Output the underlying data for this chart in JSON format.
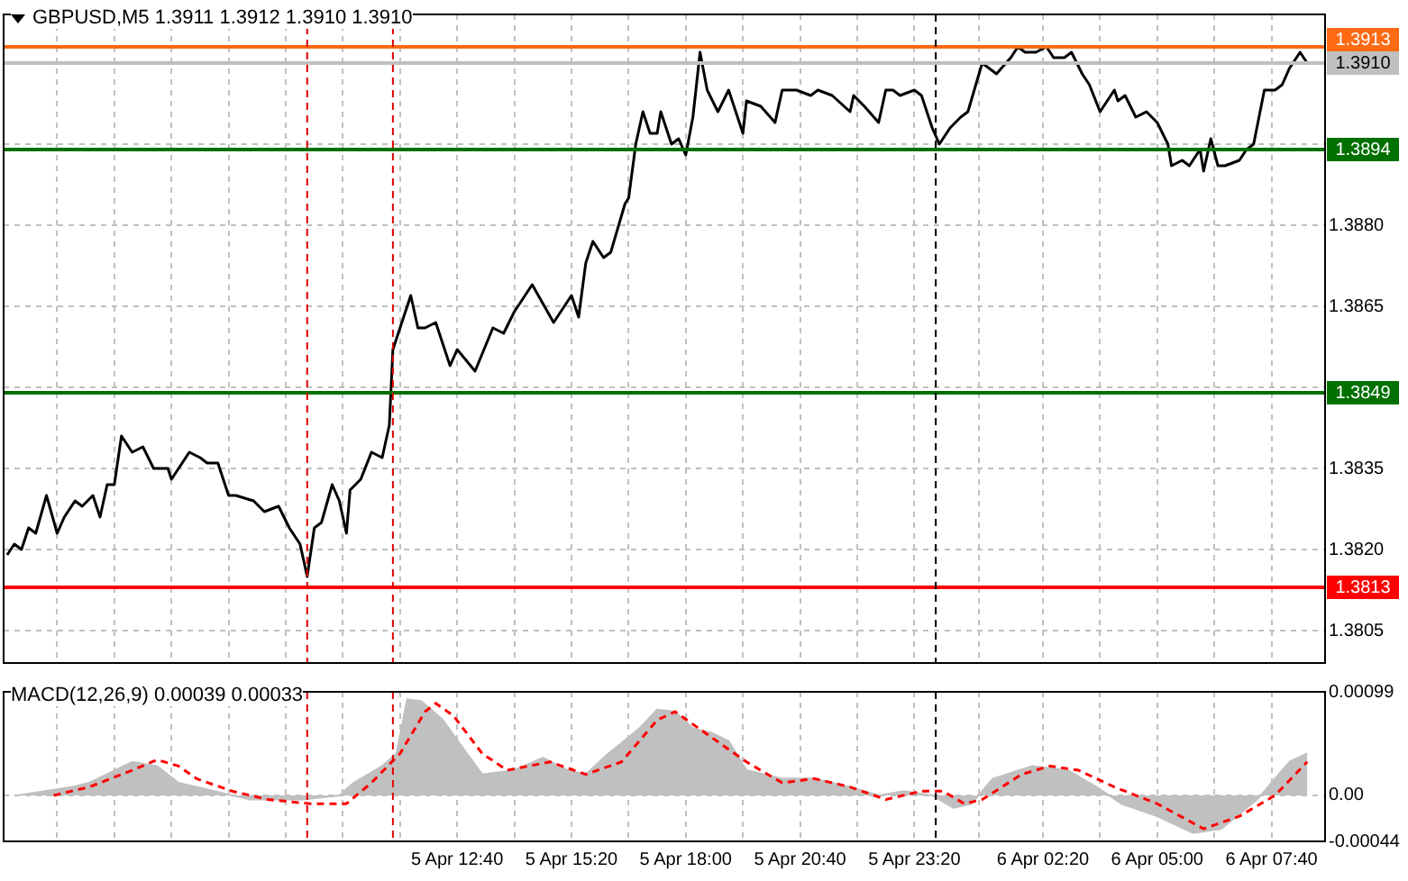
{
  "chart_data": [
    {
      "type": "line",
      "title": "GBPUSD,M5  1.3911 1.3912 1.3910 1.3910",
      "xlim": [
        "--04-05T02:05",
        "--04-06T08:55"
      ],
      "xticks": [
        {
          "value": "--04-05T03:20",
          "label": null
        },
        {
          "value": "--04-05T04:40",
          "label": null
        },
        {
          "value": "--04-05T06:00",
          "label": null
        },
        {
          "value": "--04-05T07:20",
          "label": null
        },
        {
          "value": "--04-05T08:40",
          "label": null
        },
        {
          "value": "--04-05T10:00",
          "label": null
        },
        {
          "value": "--04-05T11:20",
          "label": null
        },
        {
          "value": "--04-05T12:40",
          "label": null
        },
        {
          "value": "--04-05T14:00",
          "label": null
        },
        {
          "value": "--04-05T15:20",
          "label": null
        },
        {
          "value": "--04-05T16:40",
          "label": null
        },
        {
          "value": "--04-05T18:00",
          "label": null
        },
        {
          "value": "--04-05T19:20",
          "label": null
        },
        {
          "value": "--04-05T20:40",
          "label": null
        },
        {
          "value": "--04-05T22:00",
          "label": null
        },
        {
          "value": "--04-05T23:20",
          "label": null
        },
        {
          "value": "--04-06T00:50",
          "label": null
        },
        {
          "value": "--04-06T02:20",
          "label": null
        },
        {
          "value": "--04-06T03:40",
          "label": null
        },
        {
          "value": "--04-06T05:00",
          "label": null
        },
        {
          "value": "--04-06T06:20",
          "label": null
        },
        {
          "value": "--04-06T07:40",
          "label": null
        }
      ],
      "ylim": [
        1.3799,
        1.3919
      ],
      "yticks": [
        1.3805,
        {
          "value": 1.382,
          "label": "1.3820"
        },
        1.3835,
        {
          "value": 1.385,
          "label": null
        },
        1.3865,
        {
          "value": 1.388,
          "label": "1.3880"
        },
        {
          "value": 1.3895,
          "label": null
        }
      ],
      "tick_labels": "y",
      "grid": true,
      "marker": "none",
      "series": [
        {
          "color": "#000000",
          "x": [
            "--04-05T02:10",
            "--04-05T02:20",
            "--04-05T02:30",
            "--04-05T02:40",
            "--04-05T02:50",
            "--04-05T03:05",
            "--04-05T03:20",
            "--04-05T03:30",
            "--04-05T03:45",
            "--04-05T03:55",
            "--04-05T04:10",
            "--04-05T04:20",
            "--04-05T04:30",
            "--04-05T04:40",
            "--04-05T04:50",
            "--04-05T05:05",
            "--04-05T05:20",
            "--04-05T05:35",
            "--04-05T05:55",
            "--04-05T06:00",
            "--04-05T06:10",
            "--04-05T06:25",
            "--04-05T06:40",
            "--04-05T06:50",
            "--04-05T07:05",
            "--04-05T07:20",
            "--04-05T07:30",
            "--04-05T07:55",
            "--04-05T08:10",
            "--04-05T08:30",
            "--04-05T08:45",
            "--04-05T09:00",
            "--04-05T09:10",
            "--04-05T09:20",
            "--04-05T09:30",
            "--04-05T09:45",
            "--04-05T09:55",
            "--04-05T10:05",
            "--04-05T10:10",
            "--04-05T10:25",
            "--04-05T10:40",
            "--04-05T10:55",
            "--04-05T11:05",
            "--04-05T11:10",
            "--04-05T11:25",
            "--04-05T11:35",
            "--04-05T11:45",
            "--04-05T11:55",
            "--04-05T12:10",
            "--04-05T12:30",
            "--04-05T12:40",
            "--04-05T13:05",
            "--04-05T13:30",
            "--04-05T13:45",
            "--04-05T14:00",
            "--04-05T14:25",
            "--04-05T14:55",
            "--04-05T15:20",
            "--04-05T15:30",
            "--04-05T15:40",
            "--04-05T15:50",
            "--04-05T16:05",
            "--04-05T16:15",
            "--04-05T16:35",
            "--04-05T16:40",
            "--04-05T16:50",
            "--04-05T17:00",
            "--04-05T17:10",
            "--04-05T17:20",
            "--04-05T17:25",
            "--04-05T17:40",
            "--04-05T17:50",
            "--04-05T18:00",
            "--04-05T18:10",
            "--04-05T18:20",
            "--04-05T18:30",
            "--04-05T18:45",
            "--04-05T19:00",
            "--04-05T19:20",
            "--04-05T19:25",
            "--04-05T19:45",
            "--04-05T20:05",
            "--04-05T20:15",
            "--04-05T20:35",
            "--04-05T20:55",
            "--04-05T21:05",
            "--04-05T21:25",
            "--04-05T21:50",
            "--04-05T21:55",
            "--04-05T22:10",
            "--04-05T22:30",
            "--04-05T22:40",
            "--04-05T22:50",
            "--04-05T23:00",
            "--04-05T23:20",
            "--04-05T23:30",
            "--04-05T23:45",
            "--04-05T23:55",
            "--04-06T00:10",
            "--04-06T00:25",
            "--04-06T00:35",
            "--04-06T00:55",
            "--04-06T01:15",
            "--04-06T01:35",
            "--04-06T01:45",
            "--04-06T01:55",
            "--04-06T02:10",
            "--04-06T02:25",
            "--04-06T02:35",
            "--04-06T02:50",
            "--04-06T03:00",
            "--04-06T03:15",
            "--04-06T03:25",
            "--04-06T03:40",
            "--04-06T03:50",
            "--04-06T04:00",
            "--04-06T04:05",
            "--04-06T04:15",
            "--04-06T04:30",
            "--04-06T04:45",
            "--04-06T05:00",
            "--04-06T05:15",
            "--04-06T05:20",
            "--04-06T05:35",
            "--04-06T05:45",
            "--04-06T06:00",
            "--04-06T06:05",
            "--04-06T06:15",
            "--04-06T06:25",
            "--04-06T06:35",
            "--04-06T06:55",
            "--04-06T07:05",
            "--04-06T07:15",
            "--04-06T07:30",
            "--04-06T07:45",
            "--04-06T07:55",
            "--04-06T08:05",
            "--04-06T08:20",
            "--04-06T08:30"
          ],
          "values": [
            1.3819,
            1.3821,
            1.382,
            1.3824,
            1.3823,
            1.383,
            1.3823,
            1.3826,
            1.3829,
            1.3828,
            1.383,
            1.3826,
            1.3832,
            1.3832,
            1.3841,
            1.3838,
            1.3839,
            1.3835,
            1.3835,
            1.3833,
            1.3835,
            1.3838,
            1.3837,
            1.3836,
            1.3836,
            1.383,
            1.383,
            1.3829,
            1.3827,
            1.3828,
            1.3824,
            1.3821,
            1.3815,
            1.3824,
            1.3825,
            1.3832,
            1.3829,
            1.3823,
            1.3831,
            1.3833,
            1.3838,
            1.3837,
            1.3843,
            1.3857,
            1.3863,
            1.3867,
            1.3861,
            1.3861,
            1.3862,
            1.3854,
            1.3857,
            1.3853,
            1.3861,
            1.386,
            1.3864,
            1.3869,
            1.3862,
            1.3867,
            1.3863,
            1.3873,
            1.3877,
            1.3874,
            1.3875,
            1.3884,
            1.3885,
            1.3895,
            1.3901,
            1.3897,
            1.3897,
            1.3901,
            1.3895,
            1.3896,
            1.3893,
            1.39,
            1.3912,
            1.3905,
            1.3901,
            1.3905,
            1.3897,
            1.3903,
            1.3902,
            1.3899,
            1.3905,
            1.3905,
            1.3904,
            1.3905,
            1.3904,
            1.3901,
            1.3904,
            1.3902,
            1.3899,
            1.3905,
            1.3905,
            1.3904,
            1.3905,
            1.3904,
            1.3898,
            1.3895,
            1.3898,
            1.39,
            1.3901,
            1.391,
            1.3908,
            1.3911,
            1.3913,
            1.3912,
            1.3912,
            1.3913,
            1.3911,
            1.3911,
            1.3912,
            1.3908,
            1.3906,
            1.3901,
            1.3903,
            1.3905,
            1.3903,
            1.3904,
            1.39,
            1.3901,
            1.3899,
            1.3895,
            1.3891,
            1.3892,
            1.3891,
            1.3894,
            1.389,
            1.3896,
            1.3891,
            1.3891,
            1.3892,
            1.3894,
            1.3895,
            1.3905,
            1.3905,
            1.3906,
            1.3909,
            1.3912,
            1.391
          ]
        }
      ],
      "ref_lines": [
        {
          "axis": "y",
          "value": 1.3913,
          "label": "1.3913",
          "color": "#ff6a13"
        },
        {
          "axis": "y",
          "value": 1.391,
          "label": "1.3910",
          "color": "#c0c0c0"
        },
        {
          "axis": "y",
          "value": 1.3894,
          "label": "1.3894",
          "color": "#007000"
        },
        {
          "axis": "y",
          "value": 1.3849,
          "label": "1.3849",
          "color": "#007000"
        },
        {
          "axis": "y",
          "value": 1.3813,
          "label": "1.3813",
          "color": "#ff0000"
        },
        {
          "axis": "x",
          "value": "--04-05T09:10",
          "color": "#e00000",
          "line_style": "dashed"
        },
        {
          "axis": "x",
          "value": "--04-05T11:10",
          "color": "#e00000",
          "line_style": "dashed"
        },
        {
          "axis": "x",
          "value": "--04-05T23:50",
          "color": "#000000",
          "line_style": "dashed"
        }
      ]
    },
    {
      "type": "area",
      "title": "MACD(12,26,9) 0.00039 0.00033",
      "xlim": [
        "--04-05T02:05",
        "--04-06T08:55"
      ],
      "xticks": [
        {
          "value": "--04-05T03:20",
          "label": null
        },
        {
          "value": "--04-05T04:40",
          "label": null
        },
        {
          "value": "--04-05T06:00",
          "label": null
        },
        {
          "value": "--04-05T07:20",
          "label": null
        },
        {
          "value": "--04-05T08:40",
          "label": null
        },
        {
          "value": "--04-05T10:00",
          "label": null
        },
        {
          "value": "--04-05T11:20",
          "label": null
        },
        {
          "value": "--04-05T12:40",
          "label": "5 Apr 12:40"
        },
        {
          "value": "--04-05T14:00",
          "label": null
        },
        {
          "value": "--04-05T15:20",
          "label": "5 Apr 15:20"
        },
        {
          "value": "--04-05T16:40",
          "label": null
        },
        {
          "value": "--04-05T18:00",
          "label": "5 Apr 18:00"
        },
        {
          "value": "--04-05T19:20",
          "label": null
        },
        {
          "value": "--04-05T20:40",
          "label": "5 Apr 20:40"
        },
        {
          "value": "--04-05T22:00",
          "label": null
        },
        {
          "value": "--04-05T23:20",
          "label": "5 Apr 23:20"
        },
        {
          "value": "--04-06T00:50",
          "label": null
        },
        {
          "value": "--04-06T02:20",
          "label": "6 Apr 02:20"
        },
        {
          "value": "--04-06T03:40",
          "label": null
        },
        {
          "value": "--04-06T05:00",
          "label": "6 Apr 05:00"
        },
        {
          "value": "--04-06T06:20",
          "label": null
        },
        {
          "value": "--04-06T07:40",
          "label": "6 Apr 07:40"
        }
      ],
      "ylim": [
        -0.00044,
        0.00099
      ],
      "yticks": [
        -0.00044,
        {
          "value": 0,
          "label": "0.00"
        },
        0.00099
      ],
      "grid": true,
      "marker": "none",
      "series": [
        {
          "color": "#c0c0c0",
          "x": [
            "--04-05T02:25",
            "--04-05T03:40",
            "--04-05T04:05",
            "--04-05T05:05",
            "--04-05T05:40",
            "--04-05T06:10",
            "--04-05T07:00",
            "--04-05T07:50",
            "--04-05T09:05",
            "--04-05T09:55",
            "--04-05T10:15",
            "--04-05T10:55",
            "--04-05T11:15",
            "--04-05T11:30",
            "--04-05T11:50",
            "--04-05T12:20",
            "--04-05T12:45",
            "--04-05T13:15",
            "--04-05T14:00",
            "--04-05T14:40",
            "--04-05T15:15",
            "--04-05T15:40",
            "--04-05T16:05",
            "--04-05T16:55",
            "--04-05T17:20",
            "--04-05T17:45",
            "--04-05T18:10",
            "--04-05T18:35",
            "--04-05T19:00",
            "--04-05T19:25",
            "--04-05T20:15",
            "--04-05T21:00",
            "--04-05T21:50",
            "--04-05T22:30",
            "--04-05T23:05",
            "--04-05T23:45",
            "--04-06T00:15",
            "--04-06T00:40",
            "--04-06T01:10",
            "--04-06T02:05",
            "--04-06T02:55",
            "--04-06T03:35",
            "--04-06T04:10",
            "--04-06T05:00",
            "--04-06T05:50",
            "--04-06T06:30",
            "--04-06T07:20",
            "--04-06T07:45",
            "--04-06T08:05",
            "--04-06T08:30"
          ],
          "values": [
            0,
            8e-05,
            0.00012,
            0.00032,
            0.00028,
            0.00012,
            4e-05,
            -4e-05,
            -4e-05,
            0,
            0.00012,
            0.00028,
            0.0004,
            0.00092,
            0.0009,
            0.00072,
            0.00048,
            0.0002,
            0.00024,
            0.00036,
            0.00024,
            0.0002,
            0.00036,
            0.00064,
            0.00082,
            0.0008,
            0.00064,
            0.0006,
            0.00052,
            0.00024,
            0.00016,
            0.00016,
            8e-05,
            0,
            4e-05,
            0,
            -0.00012,
            -8e-05,
            0.00016,
            0.00028,
            0.00024,
            8e-05,
            -8e-05,
            -0.0002,
            -0.00036,
            -0.00032,
            -4e-05,
            0.00016,
            0.00032,
            0.0004
          ]
        },
        {
          "type": "line",
          "color": "#ff0000",
          "line_style": "dashed",
          "x": [
            "--04-05T03:15",
            "--04-05T04:05",
            "--04-05T05:05",
            "--04-05T05:40",
            "--04-05T06:10",
            "--04-05T06:35",
            "--04-05T07:25",
            "--04-05T08:15",
            "--04-05T09:15",
            "--04-05T10:05",
            "--04-05T10:40",
            "--04-05T11:20",
            "--04-05T11:55",
            "--04-05T12:10",
            "--04-05T12:35",
            "--04-05T13:15",
            "--04-05T13:50",
            "--04-05T14:50",
            "--04-05T15:40",
            "--04-05T16:30",
            "--04-05T17:20",
            "--04-05T17:45",
            "--04-05T18:35",
            "--04-05T19:25",
            "--04-05T20:15",
            "--04-05T21:00",
            "--04-05T21:50",
            "--04-05T22:40",
            "--04-05T23:30",
            "--04-06T00:00",
            "--04-06T00:30",
            "--04-06T00:55",
            "--04-06T01:50",
            "--04-06T02:30",
            "--04-06T03:10",
            "--04-06T04:00",
            "--04-06T05:00",
            "--04-06T06:05",
            "--04-06T06:55",
            "--04-06T07:45",
            "--04-06T08:30"
          ],
          "values": [
            0,
            8e-05,
            0.00024,
            0.00034,
            0.00028,
            0.00016,
            4e-05,
            -4e-05,
            -8e-05,
            -8e-05,
            0.00012,
            0.0004,
            0.0008,
            0.00088,
            0.00076,
            0.0004,
            0.00024,
            0.00032,
            0.0002,
            0.00032,
            0.00072,
            0.0008,
            0.00056,
            0.00032,
            0.00012,
            0.00016,
            8e-05,
            -4e-05,
            4e-05,
            4e-05,
            -8e-05,
            -4e-05,
            0.0002,
            0.00028,
            0.00024,
            8e-05,
            -8e-05,
            -0.00032,
            -0.0002,
            0,
            0.00032
          ]
        }
      ],
      "ref_lines": [
        {
          "axis": "x",
          "value": "--04-05T09:10",
          "color": "#e00000",
          "line_style": "dashed"
        },
        {
          "axis": "x",
          "value": "--04-05T11:10",
          "color": "#e00000",
          "line_style": "dashed"
        },
        {
          "axis": "x",
          "value": "--04-05T23:50",
          "color": "#000000",
          "line_style": "dashed"
        }
      ]
    }
  ]
}
